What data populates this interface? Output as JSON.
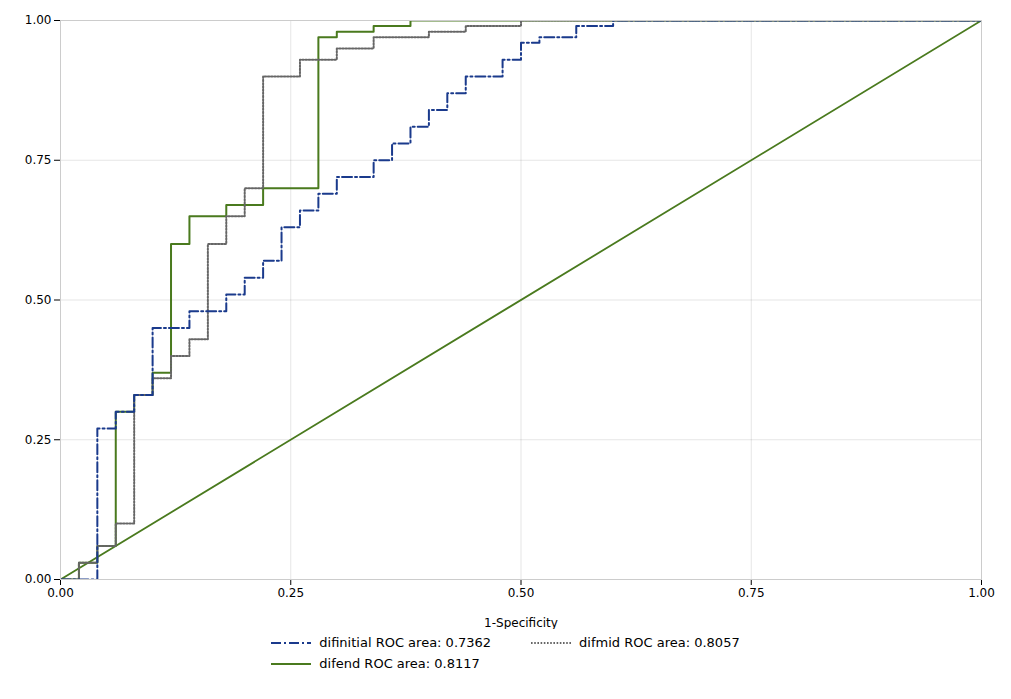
{
  "chart_data": {
    "type": "line",
    "xlabel": "1-Specificity",
    "xlim": [
      0.0,
      1.0
    ],
    "ylim": [
      0.0,
      1.0
    ],
    "xticks": [
      {
        "value": 0.0,
        "label": "0.00"
      },
      {
        "value": 0.25,
        "label": "0.25"
      },
      {
        "value": 0.5,
        "label": "0.50"
      },
      {
        "value": 0.75,
        "label": "0.75"
      },
      {
        "value": 1.0,
        "label": "1.00"
      }
    ],
    "yticks": [
      {
        "value": 0.0,
        "label": "0.00"
      },
      {
        "value": 0.25,
        "label": "0.25"
      },
      {
        "value": 0.5,
        "label": "0.50"
      },
      {
        "value": 0.75,
        "label": "0.75"
      },
      {
        "value": 1.0,
        "label": "1.00"
      }
    ],
    "grid": true,
    "legend": "bottom",
    "diagonal": {
      "x": [
        0,
        1
      ],
      "values": [
        0,
        1
      ],
      "color": "#4a7a1e",
      "line_style": "solid"
    },
    "series": [
      {
        "name": "difinitial ROC area: 0.7362",
        "color": "#1a3a8c",
        "line_style": "dashdot",
        "x": [
          0.0,
          0.04,
          0.04,
          0.06,
          0.06,
          0.08,
          0.08,
          0.1,
          0.1,
          0.14,
          0.14,
          0.18,
          0.18,
          0.2,
          0.2,
          0.22,
          0.22,
          0.24,
          0.24,
          0.26,
          0.26,
          0.28,
          0.28,
          0.3,
          0.3,
          0.34,
          0.34,
          0.36,
          0.36,
          0.38,
          0.38,
          0.4,
          0.4,
          0.42,
          0.42,
          0.44,
          0.44,
          0.48,
          0.48,
          0.5,
          0.5,
          0.52,
          0.52,
          0.56,
          0.56,
          0.6,
          0.6,
          0.7,
          0.7,
          0.8,
          0.8,
          0.9,
          0.9,
          1.0
        ],
        "values": [
          0.0,
          0.0,
          0.27,
          0.27,
          0.3,
          0.3,
          0.33,
          0.33,
          0.45,
          0.45,
          0.48,
          0.48,
          0.51,
          0.51,
          0.54,
          0.54,
          0.57,
          0.57,
          0.63,
          0.63,
          0.66,
          0.66,
          0.69,
          0.69,
          0.72,
          0.72,
          0.75,
          0.75,
          0.78,
          0.78,
          0.81,
          0.81,
          0.84,
          0.84,
          0.87,
          0.87,
          0.9,
          0.9,
          0.93,
          0.93,
          0.96,
          0.96,
          0.97,
          0.97,
          0.99,
          0.99,
          1.0,
          1.0,
          1.0,
          1.0,
          1.0,
          1.0,
          1.0,
          1.0
        ]
      },
      {
        "name": "difmid ROC area: 0.8057",
        "color": "#666666",
        "line_style": "dotted",
        "x": [
          0.0,
          0.02,
          0.02,
          0.04,
          0.04,
          0.06,
          0.06,
          0.08,
          0.08,
          0.1,
          0.1,
          0.12,
          0.12,
          0.14,
          0.14,
          0.16,
          0.16,
          0.18,
          0.18,
          0.2,
          0.2,
          0.22,
          0.22,
          0.26,
          0.26,
          0.3,
          0.3,
          0.34,
          0.34,
          0.4,
          0.4,
          0.44,
          0.44,
          0.5,
          0.5,
          0.6,
          0.6,
          0.7,
          0.7,
          0.8,
          0.8,
          0.9,
          0.9,
          1.0
        ],
        "values": [
          0.0,
          0.0,
          0.03,
          0.03,
          0.06,
          0.06,
          0.1,
          0.1,
          0.33,
          0.33,
          0.36,
          0.36,
          0.4,
          0.4,
          0.43,
          0.43,
          0.6,
          0.6,
          0.65,
          0.65,
          0.7,
          0.7,
          0.9,
          0.9,
          0.93,
          0.93,
          0.95,
          0.95,
          0.97,
          0.97,
          0.98,
          0.98,
          0.99,
          0.99,
          1.0,
          1.0,
          1.0,
          1.0,
          1.0,
          1.0,
          1.0,
          1.0,
          1.0,
          1.0
        ]
      },
      {
        "name": "difend ROC area: 0.8117",
        "color": "#4a7a1e",
        "line_style": "solid",
        "x": [
          0.0,
          0.02,
          0.02,
          0.04,
          0.04,
          0.06,
          0.06,
          0.08,
          0.08,
          0.1,
          0.1,
          0.12,
          0.12,
          0.14,
          0.14,
          0.18,
          0.18,
          0.22,
          0.22,
          0.28,
          0.28,
          0.3,
          0.3,
          0.34,
          0.34,
          0.38,
          0.38,
          0.5,
          0.5,
          0.6,
          0.6,
          0.7,
          0.7,
          0.8,
          0.8,
          0.9,
          0.9,
          1.0
        ],
        "values": [
          0.0,
          0.0,
          0.03,
          0.03,
          0.06,
          0.06,
          0.3,
          0.3,
          0.33,
          0.33,
          0.37,
          0.37,
          0.6,
          0.6,
          0.65,
          0.65,
          0.67,
          0.67,
          0.7,
          0.7,
          0.97,
          0.97,
          0.98,
          0.98,
          0.99,
          0.99,
          1.0,
          1.0,
          1.0,
          1.0,
          1.0,
          1.0,
          1.0,
          1.0,
          1.0,
          1.0,
          1.0,
          1.0
        ]
      }
    ]
  }
}
